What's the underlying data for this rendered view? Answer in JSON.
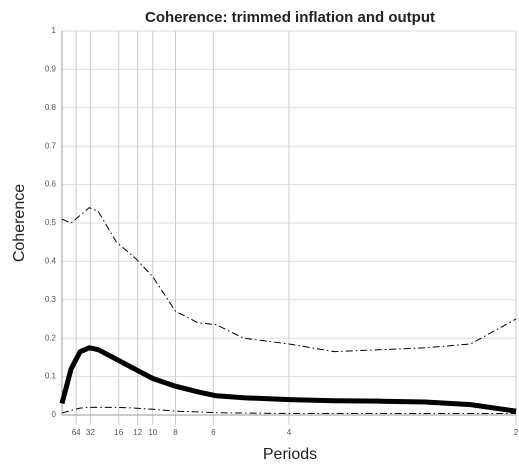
{
  "chart_data": {
    "type": "line",
    "title": "Coherence: trimmed inflation and output",
    "x_label": "Periods",
    "y_label": "Coherence",
    "x": [
      0,
      0.01,
      0.02,
      0.03,
      0.04,
      0.06,
      0.08,
      0.1,
      0.125,
      0.15,
      0.17,
      0.2,
      0.25,
      0.3,
      0.35,
      0.4,
      0.45,
      0.5
    ],
    "series": [
      {
        "color": "#000000",
        "width": 5,
        "dash": "solid",
        "values": [
          0.03,
          0.12,
          0.165,
          0.175,
          0.17,
          0.145,
          0.12,
          0.095,
          0.075,
          0.06,
          0.05,
          0.045,
          0.04,
          0.037,
          0.036,
          0.034,
          0.027,
          0.01
        ]
      },
      {
        "color": "#000000",
        "width": 1,
        "dash": "dashdot",
        "values": [
          0.51,
          0.5,
          0.52,
          0.54,
          0.53,
          0.45,
          0.41,
          0.36,
          0.27,
          0.24,
          0.235,
          0.2,
          0.185,
          0.165,
          0.17,
          0.175,
          0.185,
          0.25
        ]
      },
      {
        "color": "#000000",
        "width": 1,
        "dash": "dashdot",
        "values": [
          0.005,
          0.012,
          0.018,
          0.02,
          0.02,
          0.02,
          0.018,
          0.015,
          0.01,
          0.008,
          0.006,
          0.005,
          0.004,
          0.004,
          0.004,
          0.004,
          0.004,
          0.004
        ]
      }
    ],
    "xlim": [
      0,
      0.5
    ],
    "xticks": [
      {
        "value": 0.015625,
        "label": "64"
      },
      {
        "value": 0.03125,
        "label": "32"
      },
      {
        "value": 0.0625,
        "label": "16"
      },
      {
        "value": 0.083333,
        "label": "12"
      },
      {
        "value": 0.1,
        "label": "10"
      },
      {
        "value": 0.125,
        "label": "8"
      },
      {
        "value": 0.166667,
        "label": "6"
      },
      {
        "value": 0.25,
        "label": "4"
      },
      {
        "value": 0.5,
        "label": "2"
      }
    ],
    "ylim": [
      0,
      1
    ],
    "yticks": [
      0,
      0.1,
      0.2,
      0.3,
      0.4,
      0.5,
      0.6,
      0.7,
      0.8,
      0.9,
      1
    ],
    "grid": true
  }
}
